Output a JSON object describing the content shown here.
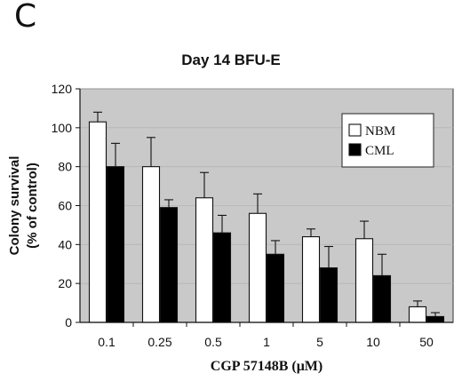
{
  "panel_label": "C",
  "chart_data": {
    "type": "bar",
    "title": "Day 14 BFU-E",
    "xlabel": "CGP 57148B (μM)",
    "ylabel": "Colony survival (% of control)",
    "ylabel_lines": [
      "Colony survival",
      "(% of control)"
    ],
    "categories": [
      "0.1",
      "0.25",
      "0.5",
      "1",
      "5",
      "10",
      "50"
    ],
    "ylim": [
      0,
      120
    ],
    "yticks": [
      0,
      20,
      40,
      60,
      80,
      100,
      120
    ],
    "legend_position": "top-right",
    "series": [
      {
        "name": "NBM",
        "fill": "#ffffff",
        "values": [
          103,
          80,
          64,
          56,
          44,
          43,
          8
        ],
        "errors": [
          5,
          15,
          13,
          10,
          4,
          9,
          3
        ]
      },
      {
        "name": "CML",
        "fill": "#000000",
        "values": [
          80,
          59,
          46,
          35,
          28,
          24,
          3
        ],
        "errors": [
          12,
          4,
          9,
          7,
          11,
          11,
          2
        ]
      }
    ],
    "plot_background": "#c9c9c9"
  }
}
